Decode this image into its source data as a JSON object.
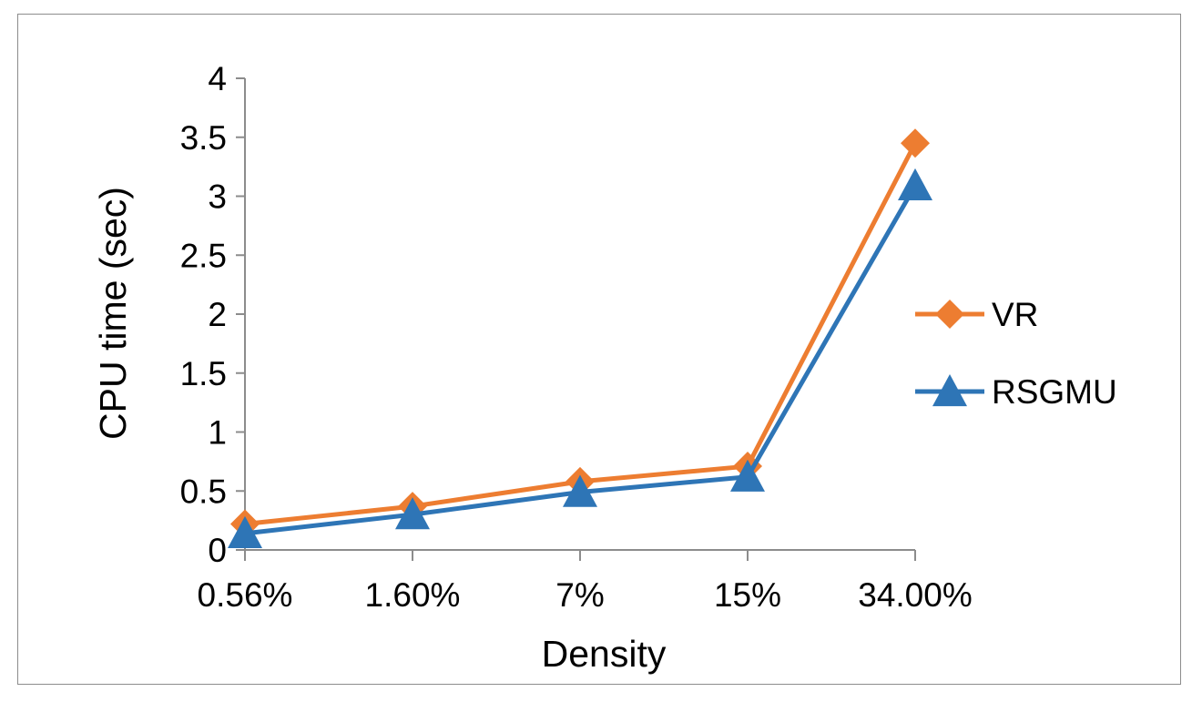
{
  "chart_data": {
    "type": "line",
    "title": "",
    "xlabel": "Density",
    "ylabel": "CPU time (sec)",
    "categories": [
      "0.56%",
      "1.60%",
      "7%",
      "15%",
      "34.00%"
    ],
    "ylim": [
      0,
      4
    ],
    "yticks": [
      "0",
      "0.5",
      "1",
      "1.5",
      "2",
      "2.5",
      "3",
      "3.5",
      "4"
    ],
    "grid": false,
    "legend_position": "right",
    "series": [
      {
        "name": "VR",
        "values": [
          0.22,
          0.37,
          0.58,
          0.71,
          3.45
        ],
        "color": "#ED7D31",
        "marker": "diamond"
      },
      {
        "name": "RSGMU",
        "values": [
          0.14,
          0.3,
          0.49,
          0.62,
          3.09
        ],
        "color": "#2E75B6",
        "marker": "triangle"
      }
    ]
  }
}
